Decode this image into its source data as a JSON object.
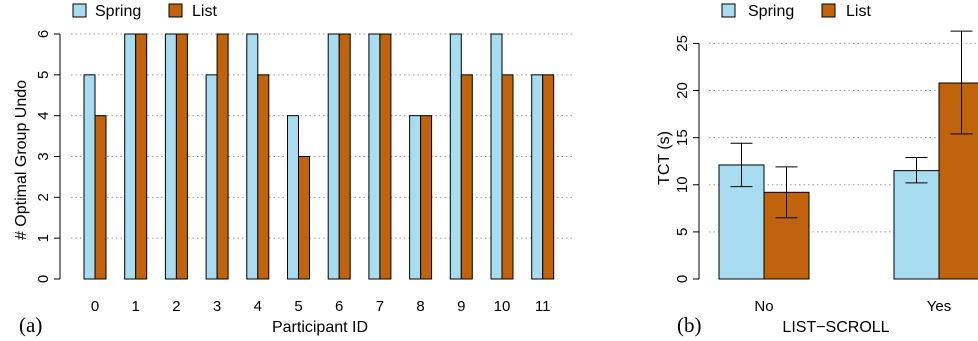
{
  "colors": {
    "spring": "#a8ddf1",
    "list": "#c0630c",
    "grid": "#9a9a9a",
    "axis": "#000000"
  },
  "legend": {
    "spring": "Spring",
    "list": "List"
  },
  "chart_data": [
    {
      "panel_label": "(a)",
      "type": "bar",
      "xlabel": "Participant ID",
      "ylabel": "# Optimal Group Undo",
      "ylim": [
        0,
        6
      ],
      "yticks": [
        "0",
        "1",
        "2",
        "3",
        "4",
        "5",
        "6"
      ],
      "categories": [
        "0",
        "1",
        "2",
        "3",
        "4",
        "5",
        "6",
        "7",
        "8",
        "9",
        "10",
        "11"
      ],
      "grid": true,
      "legend_placement": "top-left",
      "series": [
        {
          "name": "Spring",
          "values": [
            5,
            6,
            6,
            5,
            6,
            4,
            6,
            6,
            4,
            6,
            6,
            5
          ]
        },
        {
          "name": "List",
          "values": [
            4,
            6,
            6,
            6,
            5,
            3,
            6,
            6,
            4,
            5,
            5,
            5
          ]
        }
      ]
    },
    {
      "panel_label": "(b)",
      "type": "bar",
      "xlabel": "LIST−SCROLL",
      "ylabel": "TCT (s)",
      "ylim": [
        0,
        26
      ],
      "yticks": [
        "0",
        "5",
        "10",
        "15",
        "20",
        "25"
      ],
      "categories": [
        "No",
        "Yes"
      ],
      "grid": true,
      "legend_placement": "top-left",
      "series": [
        {
          "name": "Spring",
          "values": [
            12.1,
            11.5
          ],
          "err_low": [
            9.8,
            10.2
          ],
          "err_high": [
            14.4,
            12.9
          ]
        },
        {
          "name": "List",
          "values": [
            9.2,
            20.8
          ],
          "err_low": [
            6.5,
            15.4
          ],
          "err_high": [
            11.9,
            26.3
          ]
        }
      ]
    }
  ]
}
